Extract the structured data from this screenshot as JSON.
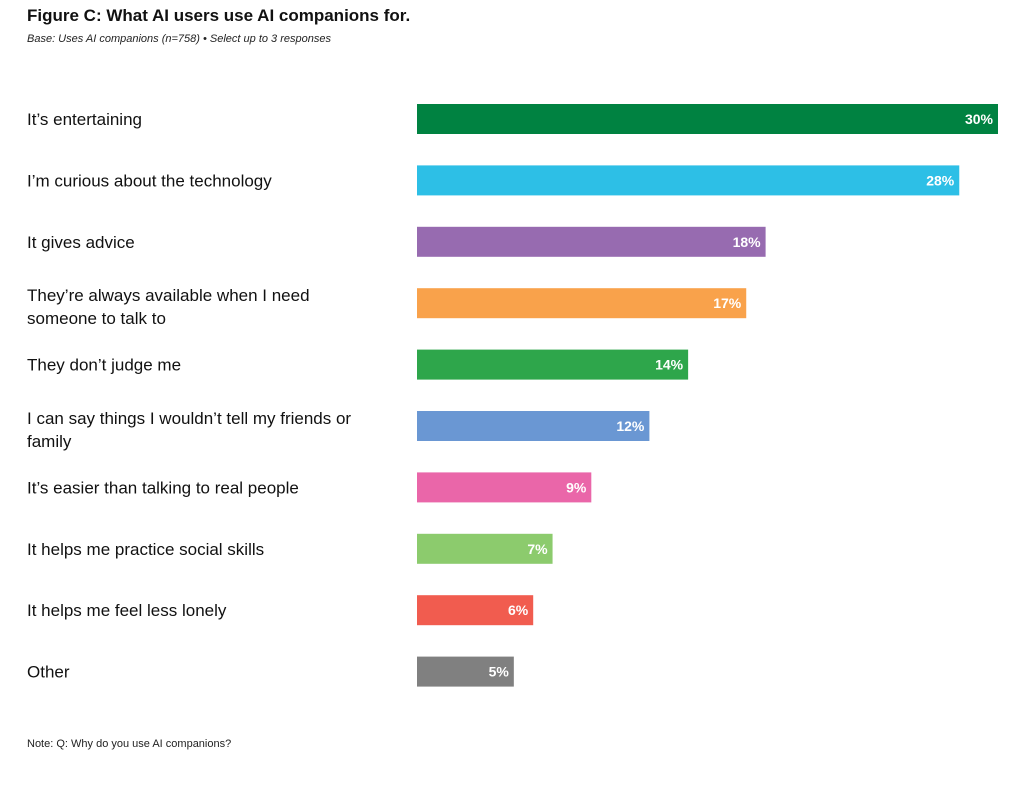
{
  "title": "Figure C: What AI users use AI companions for.",
  "subtitle": "Base: Uses AI companions (n=758) • Select up to 3 responses",
  "note": "Note: Q:  Why do you use AI companions?",
  "chart_data": {
    "type": "bar",
    "orientation": "horizontal",
    "title": "Figure C: What AI users use AI companions for.",
    "xlabel": "",
    "ylabel": "",
    "xlim": [
      0,
      30
    ],
    "grid": false,
    "value_suffix": "%",
    "categories": [
      "It’s entertaining",
      "I’m curious about the technology",
      "It gives advice",
      "They’re always available when I need someone to talk to",
      "They don’t judge me",
      "I can say things I wouldn’t tell my friends or family",
      "It’s easier than talking to real people",
      "It helps me practice social skills",
      "It helps me feel less lonely",
      "Other"
    ],
    "category_lines": [
      [
        "It’s entertaining"
      ],
      [
        "I’m curious about the technology"
      ],
      [
        "It gives advice"
      ],
      [
        "They’re always available when I need",
        "someone to talk to"
      ],
      [
        "They don’t judge me"
      ],
      [
        "I can say things I wouldn’t tell my friends or",
        "family"
      ],
      [
        "It’s easier than talking to real people"
      ],
      [
        "It helps me practice social skills"
      ],
      [
        "It helps me feel less lonely"
      ],
      [
        "Other"
      ]
    ],
    "values": [
      30,
      28,
      18,
      17,
      14,
      12,
      9,
      7,
      6,
      5
    ],
    "colors": [
      "#008241",
      "#2dbfe6",
      "#976bb0",
      "#f9a24b",
      "#2ea64b",
      "#6a97d3",
      "#ea66a9",
      "#8ccb6d",
      "#f15c4f",
      "#808080"
    ]
  }
}
